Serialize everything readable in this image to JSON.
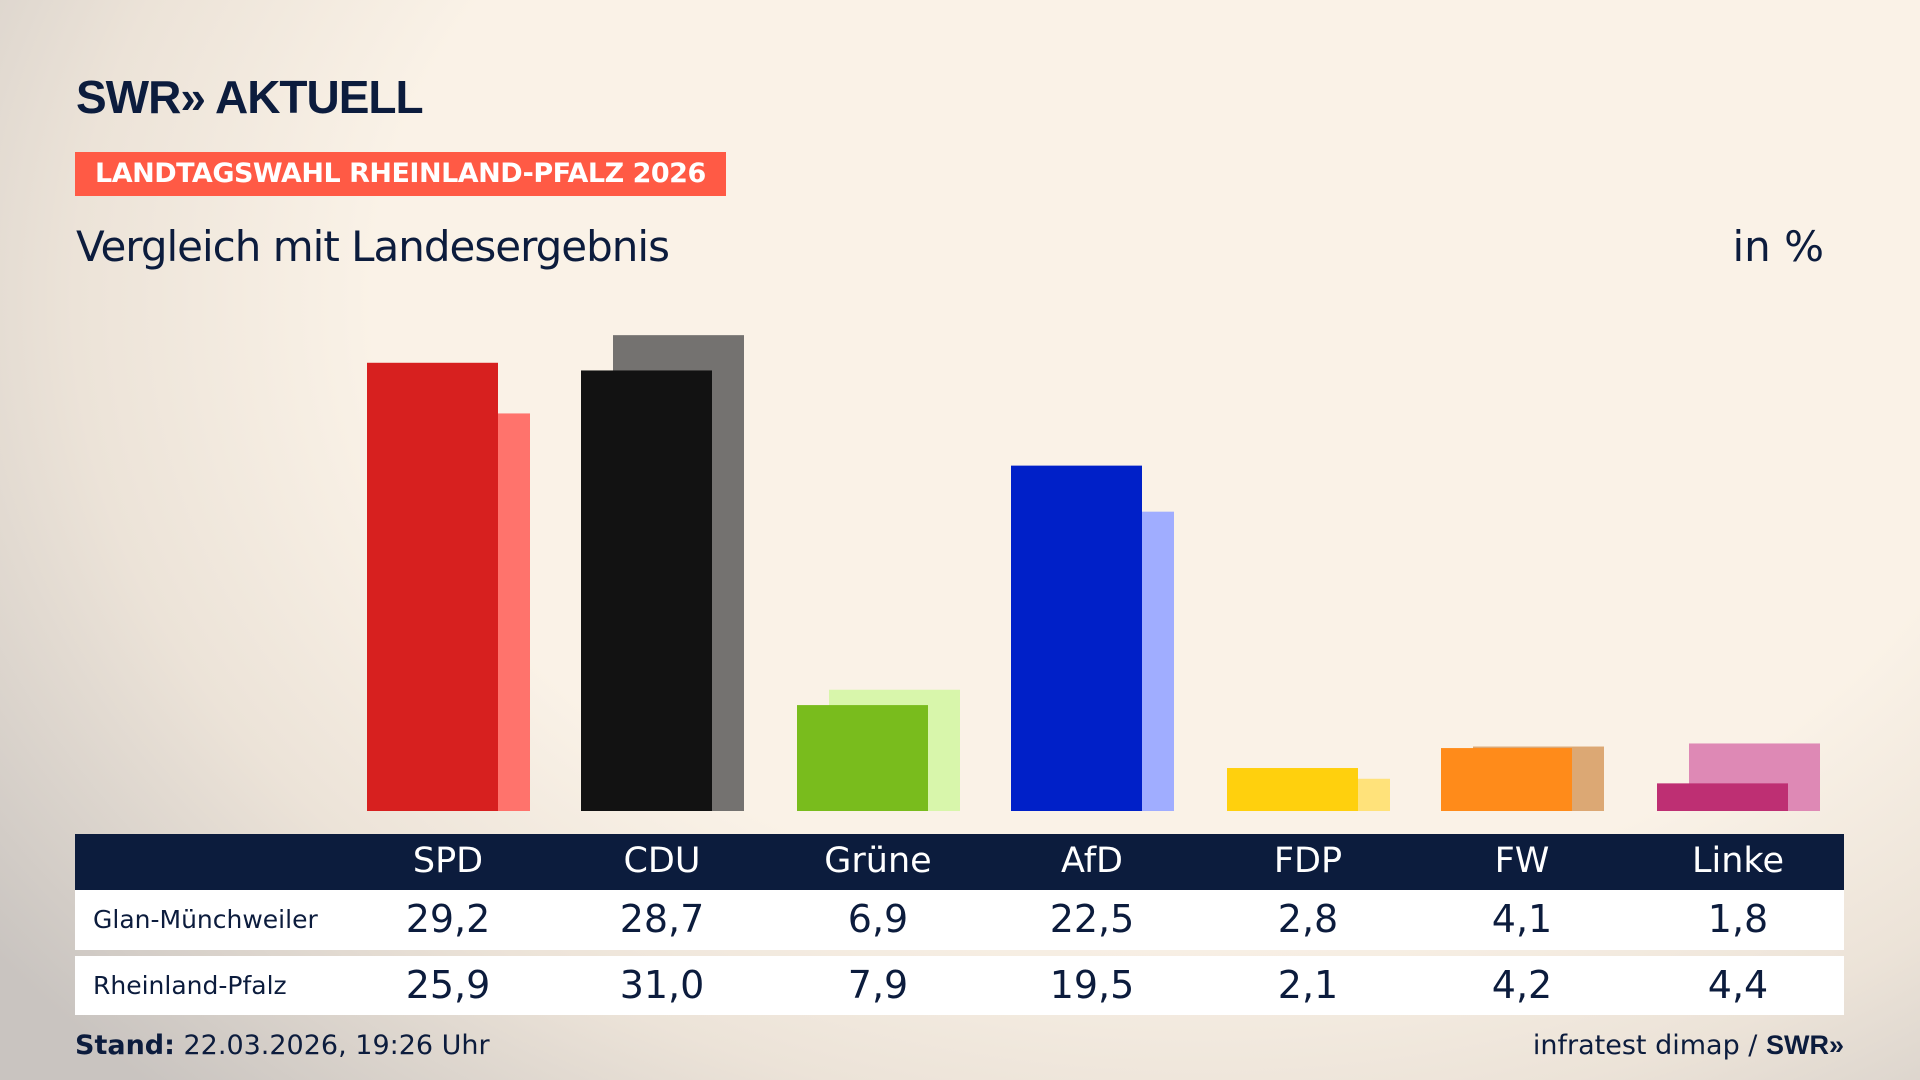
{
  "header": {
    "logo": "SWR» AKTUELL",
    "banner": "LANDTAGSWAHL RHEINLAND-PFALZ 2026",
    "subtitle": "Vergleich mit Landesergebnis",
    "unit": "in %"
  },
  "chart_data": {
    "type": "bar",
    "categories": [
      "SPD",
      "CDU",
      "Grüne",
      "AfD",
      "FDP",
      "FW",
      "Linke"
    ],
    "series": [
      {
        "name": "Glan-Münchweiler",
        "values": [
          29.2,
          28.7,
          6.9,
          22.5,
          2.8,
          4.1,
          1.8
        ],
        "labels": [
          "29,2",
          "28,7",
          "6,9",
          "22,5",
          "2,8",
          "4,1",
          "1,8"
        ],
        "colors": [
          "#d7201f",
          "#121212",
          "#79bc1d",
          "#0020c8",
          "#ffd00d",
          "#ff8b1a",
          "#be2f73"
        ]
      },
      {
        "name": "Rheinland-Pfalz",
        "values": [
          25.9,
          31.0,
          7.9,
          19.5,
          2.1,
          4.2,
          4.4
        ],
        "labels": [
          "25,9",
          "31,0",
          "7,9",
          "19,5",
          "2,1",
          "4,2",
          "4,4"
        ],
        "colors": [
          "#ff736c",
          "#747270",
          "#d8f6ab",
          "#a0adff",
          "#ffe27a",
          "#dca874",
          "#de89b5"
        ]
      }
    ],
    "ylim": [
      0,
      31
    ]
  },
  "footer": {
    "stand_label": "Stand:",
    "stand_value": " 22.03.2026, 19:26 Uhr",
    "source": "infratest dimap / ",
    "source_logo": "SWR»"
  }
}
